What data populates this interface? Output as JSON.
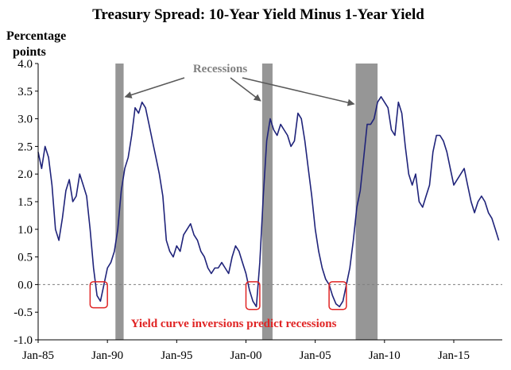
{
  "chart_data": {
    "type": "line",
    "title": "Treasury Spread: 10-Year Yield Minus 1-Year Yield",
    "ylabel_line1": "Percentage",
    "ylabel_line2": "points",
    "xlabel": "",
    "ylim": [
      -1.0,
      4.0
    ],
    "xlim": [
      1985.0,
      2018.5
    ],
    "y_ticks": [
      {
        "value": 4.0,
        "label": "4.0"
      },
      {
        "value": 3.5,
        "label": "3.5"
      },
      {
        "value": 3.0,
        "label": "3.0"
      },
      {
        "value": 2.5,
        "label": "2.5"
      },
      {
        "value": 2.0,
        "label": "2.0"
      },
      {
        "value": 1.5,
        "label": "1.5"
      },
      {
        "value": 1.0,
        "label": "1.0"
      },
      {
        "value": 0.5,
        "label": "0.5"
      },
      {
        "value": 0.0,
        "label": "0.0"
      },
      {
        "value": -0.5,
        "label": "-0.5"
      },
      {
        "value": -1.0,
        "label": "-1.0"
      }
    ],
    "x_ticks": [
      {
        "value": 1985,
        "label": "Jan-85"
      },
      {
        "value": 1990,
        "label": "Jan-90"
      },
      {
        "value": 1995,
        "label": "Jan-95"
      },
      {
        "value": 2000,
        "label": "Jan-00"
      },
      {
        "value": 2005,
        "label": "Jan-05"
      },
      {
        "value": 2010,
        "label": "Jan-10"
      },
      {
        "value": 2015,
        "label": "Jan-15"
      }
    ],
    "grid": false,
    "zero_line": true,
    "recessions": [
      {
        "start": 1990.58,
        "end": 1991.17
      },
      {
        "start": 2001.17,
        "end": 2001.92
      },
      {
        "start": 2007.92,
        "end": 2009.5
      }
    ],
    "recession_label": "Recessions",
    "inversion_label": "Yield curve inversions predict recessions",
    "inversion_periods": [
      {
        "start": 1988.75,
        "end": 1990.0,
        "low": -0.42,
        "high": 0.05
      },
      {
        "start": 2000.0,
        "end": 2001.0,
        "low": -0.45,
        "high": 0.05
      },
      {
        "start": 2006.0,
        "end": 2007.25,
        "low": -0.45,
        "high": 0.05
      }
    ],
    "colors": {
      "line": "#1f237a",
      "recession": "#969696",
      "annotation": "#e02424",
      "arrow": "#595959",
      "zero_line": "#7f7f7f"
    },
    "series": [
      {
        "x": [
          1985.0,
          1985.25,
          1985.5,
          1985.75,
          1986.0,
          1986.25,
          1986.5,
          1986.75,
          1987.0,
          1987.25,
          1987.5,
          1987.75,
          1988.0,
          1988.25,
          1988.5,
          1988.75,
          1989.0,
          1989.25,
          1989.5,
          1989.75,
          1990.0,
          1990.25,
          1990.5,
          1990.75,
          1991.0,
          1991.25,
          1991.5,
          1991.75,
          1992.0,
          1992.25,
          1992.5,
          1992.75,
          1993.0,
          1993.25,
          1993.5,
          1993.75,
          1994.0,
          1994.25,
          1994.5,
          1994.75,
          1995.0,
          1995.25,
          1995.5,
          1995.75,
          1996.0,
          1996.25,
          1996.5,
          1996.75,
          1997.0,
          1997.25,
          1997.5,
          1997.75,
          1998.0,
          1998.25,
          1998.5,
          1998.75,
          1999.0,
          1999.25,
          1999.5,
          1999.75,
          2000.0,
          2000.25,
          2000.5,
          2000.75,
          2001.0,
          2001.25,
          2001.5,
          2001.75,
          2002.0,
          2002.25,
          2002.5,
          2002.75,
          2003.0,
          2003.25,
          2003.5,
          2003.75,
          2004.0,
          2004.25,
          2004.5,
          2004.75,
          2005.0,
          2005.25,
          2005.5,
          2005.75,
          2006.0,
          2006.25,
          2006.5,
          2006.75,
          2007.0,
          2007.25,
          2007.5,
          2007.75,
          2008.0,
          2008.25,
          2008.5,
          2008.75,
          2009.0,
          2009.25,
          2009.5,
          2009.75,
          2010.0,
          2010.25,
          2010.5,
          2010.75,
          2011.0,
          2011.25,
          2011.5,
          2011.75,
          2012.0,
          2012.25,
          2012.5,
          2012.75,
          2013.0,
          2013.25,
          2013.5,
          2013.75,
          2014.0,
          2014.25,
          2014.5,
          2014.75,
          2015.0,
          2015.25,
          2015.5,
          2015.75,
          2016.0,
          2016.25,
          2016.5,
          2016.75,
          2017.0,
          2017.25,
          2017.5,
          2017.75,
          2018.0,
          2018.25
        ],
        "values": [
          2.4,
          2.1,
          2.5,
          2.3,
          1.8,
          1.0,
          0.8,
          1.2,
          1.7,
          1.9,
          1.5,
          1.6,
          2.0,
          1.8,
          1.6,
          1.0,
          0.3,
          -0.2,
          -0.3,
          0.0,
          0.3,
          0.4,
          0.6,
          1.0,
          1.7,
          2.1,
          2.3,
          2.7,
          3.2,
          3.1,
          3.3,
          3.2,
          2.9,
          2.6,
          2.3,
          2.0,
          1.6,
          0.8,
          0.6,
          0.5,
          0.7,
          0.6,
          0.9,
          1.0,
          1.1,
          0.9,
          0.8,
          0.6,
          0.5,
          0.3,
          0.2,
          0.3,
          0.3,
          0.4,
          0.3,
          0.2,
          0.5,
          0.7,
          0.6,
          0.4,
          0.2,
          -0.1,
          -0.3,
          -0.4,
          0.4,
          1.6,
          2.6,
          3.0,
          2.8,
          2.7,
          2.9,
          2.8,
          2.7,
          2.5,
          2.6,
          3.1,
          3.0,
          2.6,
          2.1,
          1.6,
          1.0,
          0.6,
          0.3,
          0.1,
          0.0,
          -0.2,
          -0.35,
          -0.4,
          -0.3,
          0.0,
          0.3,
          0.8,
          1.4,
          1.7,
          2.3,
          2.9,
          2.9,
          3.0,
          3.3,
          3.4,
          3.3,
          3.2,
          2.8,
          2.7,
          3.3,
          3.1,
          2.5,
          2.0,
          1.8,
          2.0,
          1.5,
          1.4,
          1.6,
          1.8,
          2.4,
          2.7,
          2.7,
          2.6,
          2.4,
          2.1,
          1.8,
          1.9,
          2.0,
          2.1,
          1.8,
          1.5,
          1.3,
          1.5,
          1.6,
          1.5,
          1.3,
          1.2,
          1.0,
          0.8
        ]
      }
    ]
  }
}
